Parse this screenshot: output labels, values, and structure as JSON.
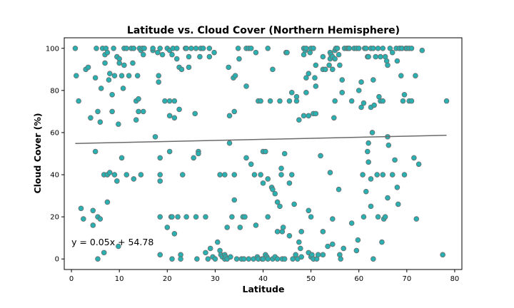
{
  "chart_data": {
    "type": "scatter",
    "title": "Latitude vs. Cloud Cover (Northern Hemisphere)",
    "xlabel": "Latitude",
    "ylabel": "Cloud Cover (%)",
    "xlim": [
      -1.5,
      81.5
    ],
    "ylim": [
      -5,
      105
    ],
    "xticks": [
      0,
      10,
      20,
      30,
      40,
      50,
      60,
      70,
      80
    ],
    "yticks": [
      0,
      20,
      40,
      60,
      80,
      100
    ],
    "grid": false,
    "annotation": {
      "text": "y = 0.05x + 54.78",
      "x": 0,
      "y": 6.5
    },
    "regression": {
      "slope": 0.05,
      "intercept": 54.78,
      "x_range": [
        0.8,
        78.3
      ],
      "color": "#6b6b6b"
    },
    "marker_fill": "#2ab0b0",
    "marker_edge": "#6b6b6b",
    "points": [
      [
        0.8,
        100
      ],
      [
        1,
        87
      ],
      [
        1.5,
        75
      ],
      [
        2,
        24
      ],
      [
        2.5,
        19
      ],
      [
        3,
        90
      ],
      [
        3.5,
        91
      ],
      [
        4,
        67
      ],
      [
        4.5,
        23
      ],
      [
        4.5,
        16
      ],
      [
        5,
        86
      ],
      [
        5,
        51
      ],
      [
        5.2,
        100
      ],
      [
        5.5,
        70
      ],
      [
        5.5,
        0
      ],
      [
        5.5,
        20
      ],
      [
        6,
        19
      ],
      [
        6,
        65
      ],
      [
        6.2,
        81
      ],
      [
        6.5,
        100
      ],
      [
        6.8,
        40
      ],
      [
        6.8,
        3
      ],
      [
        7,
        97
      ],
      [
        7,
        93
      ],
      [
        7.2,
        100
      ],
      [
        7.5,
        27
      ],
      [
        7.5,
        40
      ],
      [
        7.5,
        98
      ],
      [
        7.8,
        85
      ],
      [
        8,
        88
      ],
      [
        8,
        41
      ],
      [
        8.5,
        78
      ],
      [
        8.5,
        70
      ],
      [
        8.8,
        100
      ],
      [
        9,
        87
      ],
      [
        9,
        40
      ],
      [
        9.5,
        96
      ],
      [
        9.5,
        37
      ],
      [
        9.8,
        6
      ],
      [
        9.8,
        64
      ],
      [
        10,
        95
      ],
      [
        10,
        93
      ],
      [
        10.5,
        48
      ],
      [
        10.5,
        87
      ],
      [
        10.8,
        81
      ],
      [
        11,
        92
      ],
      [
        11,
        100
      ],
      [
        11.5,
        40
      ],
      [
        11.5,
        100
      ],
      [
        12,
        87
      ],
      [
        12.5,
        100
      ],
      [
        12.8,
        93
      ],
      [
        13,
        38
      ],
      [
        13,
        100
      ],
      [
        13.5,
        66
      ],
      [
        13.5,
        75
      ],
      [
        13.8,
        87
      ],
      [
        14,
        76
      ],
      [
        14,
        70
      ],
      [
        14.2,
        100
      ],
      [
        14.5,
        99
      ],
      [
        14.5,
        40
      ],
      [
        14.8,
        100
      ],
      [
        15,
        97
      ],
      [
        15,
        70
      ],
      [
        15.2,
        100
      ],
      [
        17,
        99
      ],
      [
        17,
        100
      ],
      [
        17.5,
        58
      ],
      [
        18,
        98
      ],
      [
        18.2,
        84
      ],
      [
        18.2,
        87
      ],
      [
        18.5,
        100
      ],
      [
        18.5,
        40
      ],
      [
        18.5,
        37
      ],
      [
        18.5,
        20
      ],
      [
        18.5,
        48
      ],
      [
        18.5,
        2
      ],
      [
        19,
        97
      ],
      [
        19.5,
        75
      ],
      [
        20,
        15
      ],
      [
        20,
        100
      ],
      [
        20.5,
        99
      ],
      [
        20.5,
        51
      ],
      [
        20.5,
        75
      ],
      [
        20.5,
        68
      ],
      [
        20.8,
        20
      ],
      [
        21,
        97
      ],
      [
        21,
        20
      ],
      [
        21,
        0
      ],
      [
        21.2,
        100
      ],
      [
        21.5,
        67
      ],
      [
        21.5,
        75
      ],
      [
        21.5,
        12
      ],
      [
        22,
        95
      ],
      [
        22,
        100
      ],
      [
        22.2,
        20
      ],
      [
        22.5,
        91
      ],
      [
        22.5,
        71
      ],
      [
        22.8,
        2
      ],
      [
        22.8,
        0
      ],
      [
        23,
        90
      ],
      [
        23.2,
        40
      ],
      [
        23.8,
        100
      ],
      [
        24,
        100
      ],
      [
        24,
        20
      ],
      [
        24.5,
        96
      ],
      [
        24.5,
        91
      ],
      [
        25,
        100
      ],
      [
        25.5,
        48
      ],
      [
        25.8,
        69
      ],
      [
        26,
        100
      ],
      [
        26,
        20
      ],
      [
        26.2,
        0
      ],
      [
        26.5,
        51
      ],
      [
        26.5,
        50
      ],
      [
        26.8,
        96
      ],
      [
        27,
        100
      ],
      [
        27.5,
        100
      ],
      [
        28,
        20
      ],
      [
        28,
        3
      ],
      [
        28.5,
        0
      ],
      [
        28.8,
        100
      ],
      [
        28.8,
        96
      ],
      [
        29,
        5
      ],
      [
        29.5,
        1
      ],
      [
        29.8,
        98
      ],
      [
        30,
        0
      ],
      [
        30.5,
        8
      ],
      [
        31,
        40
      ],
      [
        31,
        4
      ],
      [
        31.2,
        2
      ],
      [
        31.5,
        1
      ],
      [
        32,
        40
      ],
      [
        32,
        2
      ],
      [
        32,
        0
      ],
      [
        32.2,
        1
      ],
      [
        32.5,
        15
      ],
      [
        32.5,
        0
      ],
      [
        32.8,
        91
      ],
      [
        33,
        55
      ],
      [
        33,
        68
      ],
      [
        33.2,
        1
      ],
      [
        33.5,
        20
      ],
      [
        33.8,
        86
      ],
      [
        34,
        40
      ],
      [
        34,
        28
      ],
      [
        34,
        70
      ],
      [
        34.2,
        87
      ],
      [
        34.5,
        0
      ],
      [
        34.8,
        100
      ],
      [
        35,
        95
      ],
      [
        35.2,
        15
      ],
      [
        35.5,
        0
      ],
      [
        35.8,
        20
      ],
      [
        36,
        0
      ],
      [
        36.2,
        20
      ],
      [
        36.5,
        100
      ],
      [
        36.5,
        82
      ],
      [
        36.5,
        48
      ],
      [
        37,
        0
      ],
      [
        37,
        100
      ],
      [
        37.5,
        45
      ],
      [
        37.5,
        100
      ],
      [
        38,
        0
      ],
      [
        38.2,
        40
      ],
      [
        38.5,
        98
      ],
      [
        38.5,
        16
      ],
      [
        38.8,
        1
      ],
      [
        39,
        75
      ],
      [
        39,
        0
      ],
      [
        39.5,
        75
      ],
      [
        39.5,
        40
      ],
      [
        39.8,
        0
      ],
      [
        40,
        51
      ],
      [
        40,
        36
      ],
      [
        40,
        0
      ],
      [
        40.5,
        51
      ],
      [
        40.5,
        2
      ],
      [
        40.8,
        1
      ],
      [
        41,
        38
      ],
      [
        41,
        20
      ],
      [
        41,
        100
      ],
      [
        41,
        0
      ],
      [
        41.5,
        75
      ],
      [
        41.8,
        34
      ],
      [
        42,
        90
      ],
      [
        42,
        33
      ],
      [
        42,
        0
      ],
      [
        42.5,
        31
      ],
      [
        42.5,
        1
      ],
      [
        43,
        27
      ],
      [
        43,
        13
      ],
      [
        43,
        0
      ],
      [
        43.5,
        25
      ],
      [
        43.5,
        75
      ],
      [
        43.8,
        43
      ],
      [
        43.8,
        40
      ],
      [
        44,
        13
      ],
      [
        44,
        0
      ],
      [
        44.2,
        15
      ],
      [
        44.5,
        50
      ],
      [
        44.5,
        0
      ],
      [
        44.8,
        98
      ],
      [
        45,
        98
      ],
      [
        45.5,
        75
      ],
      [
        45.5,
        36
      ],
      [
        45.5,
        11
      ],
      [
        46,
        79
      ],
      [
        46,
        40
      ],
      [
        46.2,
        0
      ],
      [
        46.5,
        26
      ],
      [
        46.8,
        2
      ],
      [
        47,
        77
      ],
      [
        47,
        75
      ],
      [
        47.2,
        0
      ],
      [
        47.5,
        66
      ],
      [
        47.5,
        8
      ],
      [
        47.8,
        5
      ],
      [
        48,
        13
      ],
      [
        48,
        1
      ],
      [
        48.5,
        100
      ],
      [
        48.5,
        68
      ],
      [
        48.5,
        97
      ],
      [
        48.8,
        99
      ],
      [
        49,
        100
      ],
      [
        49,
        86
      ],
      [
        49,
        79
      ],
      [
        49.5,
        88
      ],
      [
        49.5,
        68
      ],
      [
        49.5,
        23
      ],
      [
        49.5,
        3
      ],
      [
        49.8,
        98
      ],
      [
        50,
        100
      ],
      [
        50,
        20
      ],
      [
        50,
        1
      ],
      [
        50.2,
        2
      ],
      [
        50.5,
        100
      ],
      [
        50.5,
        69
      ],
      [
        50.5,
        0
      ],
      [
        50.8,
        86
      ],
      [
        51,
        92
      ],
      [
        51,
        82
      ],
      [
        51,
        69
      ],
      [
        51.2,
        0
      ],
      [
        51.5,
        2
      ],
      [
        52,
        49
      ],
      [
        52.5,
        90
      ],
      [
        52.5,
        96
      ],
      [
        52.5,
        13
      ],
      [
        52.5,
        2
      ],
      [
        53,
        90
      ],
      [
        53.5,
        6
      ],
      [
        53.8,
        92
      ],
      [
        54,
        98
      ],
      [
        54,
        41
      ],
      [
        54,
        95
      ],
      [
        54.2,
        97
      ],
      [
        54.5,
        96
      ],
      [
        54.5,
        90
      ],
      [
        54.5,
        7
      ],
      [
        54.5,
        19
      ],
      [
        54.8,
        67
      ],
      [
        55,
        99
      ],
      [
        55,
        95
      ],
      [
        55,
        75
      ],
      [
        55.2,
        100
      ],
      [
        55.5,
        100
      ],
      [
        55.8,
        97
      ],
      [
        55.8,
        33
      ],
      [
        56,
        92
      ],
      [
        56,
        2
      ],
      [
        56.2,
        0
      ],
      [
        56.5,
        85
      ],
      [
        56.5,
        79
      ],
      [
        56.8,
        5
      ],
      [
        57,
        100
      ],
      [
        57.5,
        100
      ],
      [
        57.8,
        100
      ],
      [
        58,
        100
      ],
      [
        58.5,
        75
      ],
      [
        58.5,
        17
      ],
      [
        59,
        100
      ],
      [
        59.5,
        100
      ],
      [
        59.5,
        4
      ],
      [
        59.8,
        9
      ],
      [
        60,
        80
      ],
      [
        60,
        100
      ],
      [
        60.5,
        84
      ],
      [
        60.5,
        72
      ],
      [
        60.8,
        40
      ],
      [
        61,
        20
      ],
      [
        61,
        74
      ],
      [
        61.2,
        100
      ],
      [
        61.5,
        100
      ],
      [
        61.5,
        32
      ],
      [
        61.8,
        96
      ],
      [
        61.8,
        51
      ],
      [
        62,
        55
      ],
      [
        62,
        46
      ],
      [
        62,
        96
      ],
      [
        62.5,
        100
      ],
      [
        62.5,
        38
      ],
      [
        62.5,
        25
      ],
      [
        62.5,
        72
      ],
      [
        62.8,
        60
      ],
      [
        63,
        0
      ],
      [
        63,
        100
      ],
      [
        63,
        85
      ],
      [
        63.2,
        73
      ],
      [
        63.5,
        96
      ],
      [
        63.8,
        40
      ],
      [
        64,
        100
      ],
      [
        64,
        20
      ],
      [
        64.2,
        77
      ],
      [
        64.5,
        75
      ],
      [
        64.5,
        96
      ],
      [
        64.8,
        8
      ],
      [
        65,
        100
      ],
      [
        65,
        75
      ],
      [
        65,
        40
      ],
      [
        65.2,
        19
      ],
      [
        65.5,
        20
      ],
      [
        65.5,
        96
      ],
      [
        65.8,
        94
      ],
      [
        66,
        92
      ],
      [
        66,
        58
      ],
      [
        66,
        29
      ],
      [
        66.2,
        54
      ],
      [
        66.5,
        100
      ],
      [
        67,
        98
      ],
      [
        67,
        40
      ],
      [
        67.5,
        47
      ],
      [
        67.8,
        100
      ],
      [
        68,
        94
      ],
      [
        68,
        34
      ],
      [
        68.2,
        26
      ],
      [
        68.5,
        100
      ],
      [
        68.5,
        100
      ],
      [
        68.8,
        87
      ],
      [
        69,
        100
      ],
      [
        69.2,
        75
      ],
      [
        69.5,
        78
      ],
      [
        69.5,
        40
      ],
      [
        69.8,
        100
      ],
      [
        70,
        100
      ],
      [
        70.5,
        100
      ],
      [
        70.5,
        75
      ],
      [
        71,
        100
      ],
      [
        71,
        75
      ],
      [
        71.5,
        48
      ],
      [
        71.8,
        87
      ],
      [
        72,
        19
      ],
      [
        72.5,
        45
      ],
      [
        73.2,
        99
      ],
      [
        77.5,
        2
      ],
      [
        78.3,
        75
      ]
    ]
  }
}
